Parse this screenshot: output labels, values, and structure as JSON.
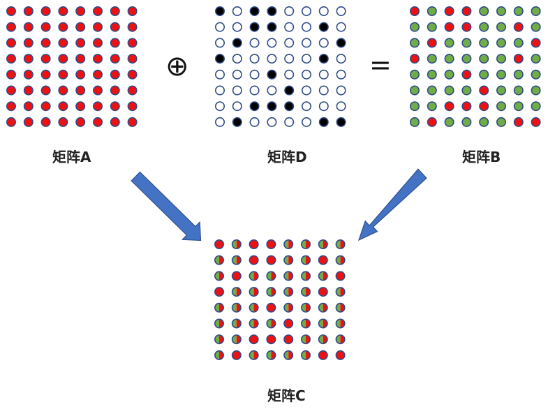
{
  "labels": {
    "a": "矩阵A",
    "d": "矩阵D",
    "b": "矩阵B",
    "c": "矩阵C"
  },
  "operators": {
    "xor": "⊕",
    "equals": "="
  },
  "colors": {
    "red": "#ee1111",
    "green": "#70ad47",
    "black": "#000000",
    "empty": "#ffffff",
    "outline": "#2e4a86",
    "arrow": "#4472c4",
    "arrowEdge": "#2f528f"
  },
  "matrix_d": [
    [
      1,
      0,
      1,
      1,
      0,
      0,
      0,
      0
    ],
    [
      0,
      0,
      1,
      1,
      0,
      0,
      1,
      0
    ],
    [
      0,
      1,
      0,
      0,
      0,
      0,
      0,
      1
    ],
    [
      1,
      0,
      0,
      0,
      0,
      0,
      1,
      0
    ],
    [
      0,
      0,
      0,
      1,
      0,
      0,
      0,
      0
    ],
    [
      0,
      0,
      0,
      0,
      1,
      0,
      0,
      0
    ],
    [
      0,
      0,
      1,
      1,
      1,
      0,
      0,
      0
    ],
    [
      0,
      1,
      0,
      0,
      0,
      0,
      1,
      1
    ]
  ],
  "matrix_b": [
    [
      "R",
      "G",
      "R",
      "R",
      "G",
      "G",
      "G",
      "G"
    ],
    [
      "G",
      "G",
      "R",
      "R",
      "G",
      "G",
      "R",
      "G"
    ],
    [
      "G",
      "R",
      "G",
      "G",
      "G",
      "G",
      "G",
      "R"
    ],
    [
      "R",
      "G",
      "G",
      "G",
      "G",
      "G",
      "R",
      "G"
    ],
    [
      "G",
      "G",
      "G",
      "R",
      "G",
      "G",
      "G",
      "G"
    ],
    [
      "G",
      "G",
      "G",
      "G",
      "R",
      "G",
      "G",
      "G"
    ],
    [
      "G",
      "G",
      "R",
      "R",
      "R",
      "G",
      "G",
      "G"
    ],
    [
      "G",
      "R",
      "G",
      "G",
      "G",
      "G",
      "R",
      "R"
    ]
  ],
  "matrix_c": [
    [
      "R",
      "M",
      "R",
      "R",
      "M",
      "M",
      "M",
      "M"
    ],
    [
      "M",
      "M",
      "R",
      "R",
      "M",
      "M",
      "R",
      "M"
    ],
    [
      "M",
      "R",
      "M",
      "M",
      "M",
      "M",
      "M",
      "R"
    ],
    [
      "R",
      "M",
      "M",
      "M",
      "M",
      "M",
      "R",
      "M"
    ],
    [
      "M",
      "M",
      "M",
      "R",
      "M",
      "M",
      "M",
      "M"
    ],
    [
      "M",
      "M",
      "M",
      "M",
      "R",
      "M",
      "M",
      "M"
    ],
    [
      "M",
      "M",
      "R",
      "R",
      "R",
      "M",
      "M",
      "M"
    ],
    [
      "M",
      "R",
      "M",
      "M",
      "M",
      "M",
      "R",
      "R"
    ]
  ]
}
